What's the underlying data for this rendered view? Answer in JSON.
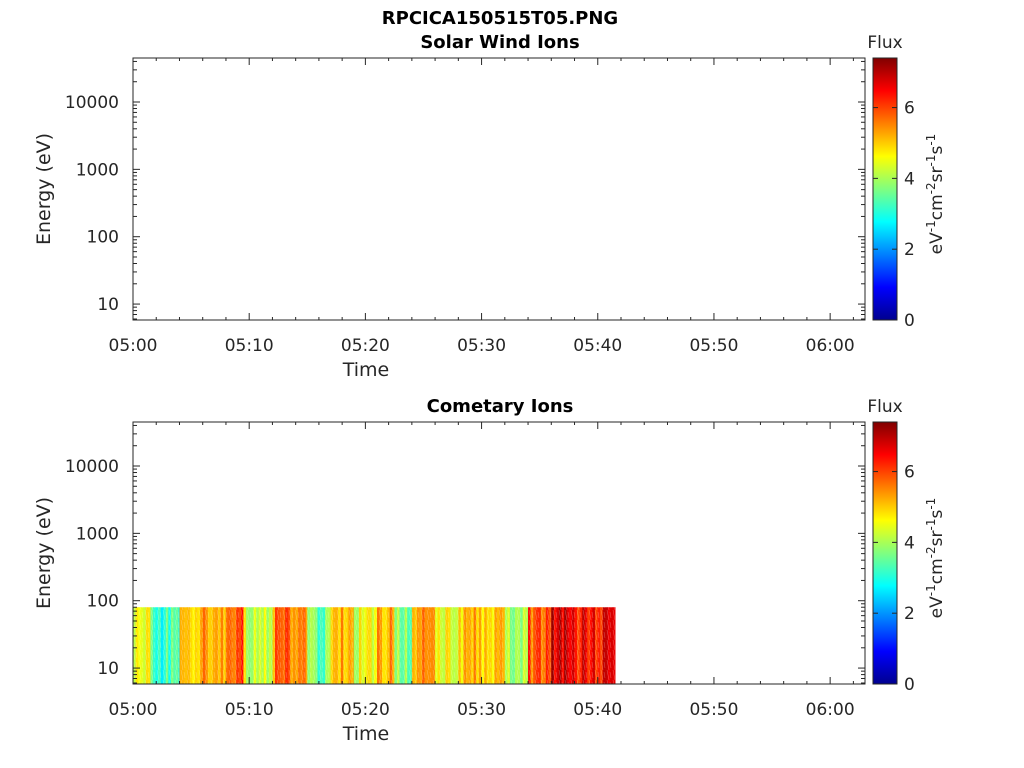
{
  "figure": {
    "title": "RPCICA150515T05.PNG"
  },
  "chart_data": [
    {
      "type": "heatmap",
      "title": "Solar Wind Ions",
      "xlabel": "Time",
      "ylabel": "Energy (eV)",
      "x_ticks": [
        "05:00",
        "05:10",
        "05:20",
        "05:30",
        "05:40",
        "05:50",
        "06:00"
      ],
      "x_range": [
        "05:00",
        "06:03"
      ],
      "y_scale": "log",
      "y_ticks": [
        "10",
        "100",
        "1000",
        "10000"
      ],
      "y_range": [
        5.8,
        45000
      ],
      "colorbar": {
        "label": "Flux",
        "units_label": "eV-1cm-2sr-1s-1",
        "ticks": [
          "0",
          "2",
          "4",
          "6"
        ],
        "range": [
          0,
          7.4
        ],
        "colormap": "jet"
      },
      "data": {
        "time_range": null,
        "energy_range": null,
        "note": ""
      }
    },
    {
      "type": "heatmap",
      "title": "Cometary Ions",
      "xlabel": "Time",
      "ylabel": "Energy (eV)",
      "x_ticks": [
        "05:00",
        "05:10",
        "05:20",
        "05:30",
        "05:40",
        "05:50",
        "06:00"
      ],
      "x_range": [
        "05:00",
        "06:03"
      ],
      "y_scale": "log",
      "y_ticks": [
        "10",
        "100",
        "1000",
        "10000"
      ],
      "y_range": [
        5.8,
        45000
      ],
      "colorbar": {
        "label": "Flux",
        "units_label": "eV-1cm-2sr-1s-1",
        "ticks": [
          "0",
          "2",
          "4",
          "6"
        ],
        "range": [
          0,
          7.4
        ],
        "colormap": "jet"
      },
      "data": {
        "time_range": [
          "05:00",
          "05:41.5"
        ],
        "energy_range": [
          5.8,
          80
        ],
        "segments": [
          {
            "start": "05:00",
            "end": "05:01.5",
            "flux": 4.5
          },
          {
            "start": "05:01.5",
            "end": "05:04",
            "flux": 3.2
          },
          {
            "start": "05:04",
            "end": "05:06",
            "flux": 4.8
          },
          {
            "start": "05:06",
            "end": "05:08",
            "flux": 5.3
          },
          {
            "start": "05:08",
            "end": "05:09.5",
            "flux": 5.9
          },
          {
            "start": "05:09.5",
            "end": "05:12",
            "flux": 4.3
          },
          {
            "start": "05:12",
            "end": "05:15",
            "flux": 5.6
          },
          {
            "start": "05:15",
            "end": "05:17",
            "flux": 3.6
          },
          {
            "start": "05:17",
            "end": "05:19",
            "flux": 5.4
          },
          {
            "start": "05:19",
            "end": "05:21",
            "flux": 4.4
          },
          {
            "start": "05:21",
            "end": "05:22.5",
            "flux": 5.2
          },
          {
            "start": "05:22.5",
            "end": "05:24",
            "flux": 3.6
          },
          {
            "start": "05:24",
            "end": "05:26",
            "flux": 5.3
          },
          {
            "start": "05:26",
            "end": "05:28",
            "flux": 4.6
          },
          {
            "start": "05:28",
            "end": "05:30",
            "flux": 5.1
          },
          {
            "start": "05:30",
            "end": "05:32",
            "flux": 4.8
          },
          {
            "start": "05:32",
            "end": "05:34",
            "flux": 3.8
          },
          {
            "start": "05:34",
            "end": "05:36",
            "flux": 5.9
          },
          {
            "start": "05:36",
            "end": "05:38",
            "flux": 6.9
          },
          {
            "start": "05:38",
            "end": "05:41.5",
            "flux": 6.4
          }
        ]
      }
    }
  ]
}
